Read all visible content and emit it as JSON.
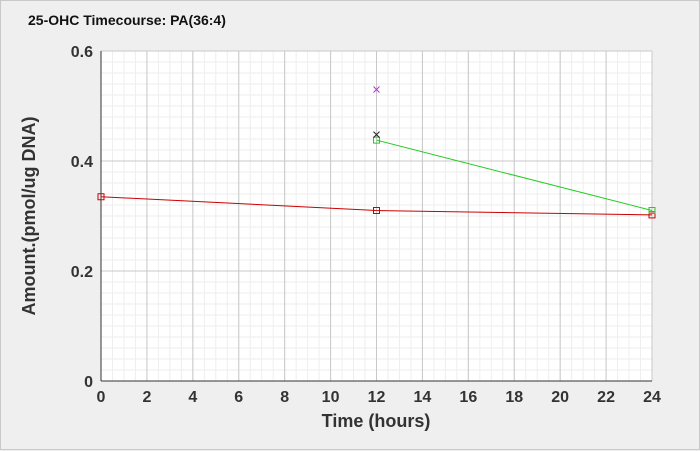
{
  "chart_data": {
    "type": "line",
    "title": "25-OHC Timecourse: PA(36:4)",
    "xlabel": "Time (hours)",
    "ylabel": "Amount.(pmol/ug DNA)",
    "xlim": [
      0,
      24
    ],
    "ylim": [
      0,
      0.6
    ],
    "x_ticks": [
      "0",
      "2",
      "4",
      "6",
      "8",
      "10",
      "12",
      "14",
      "16",
      "18",
      "20",
      "22",
      "24"
    ],
    "y_ticks": [
      "0",
      "0.2",
      "0.4",
      "0.6"
    ],
    "grid": true,
    "legend": "none",
    "series": [
      {
        "color": "#cc0000",
        "marker": "square",
        "points": [
          {
            "x": 0,
            "y": 0.335
          },
          {
            "x": 12,
            "y": 0.31
          },
          {
            "x": 24,
            "y": 0.302
          }
        ]
      },
      {
        "color": "#22cc22",
        "marker": "square",
        "points": [
          {
            "x": 12,
            "y": 0.438
          },
          {
            "x": 24,
            "y": 0.31
          }
        ]
      },
      {
        "color": "#222222",
        "marker": "x",
        "points": [
          {
            "x": 12,
            "y": 0.448
          }
        ]
      },
      {
        "color": "#bb33dd",
        "marker": "x",
        "points": [
          {
            "x": 12,
            "y": 0.53
          }
        ]
      }
    ]
  }
}
